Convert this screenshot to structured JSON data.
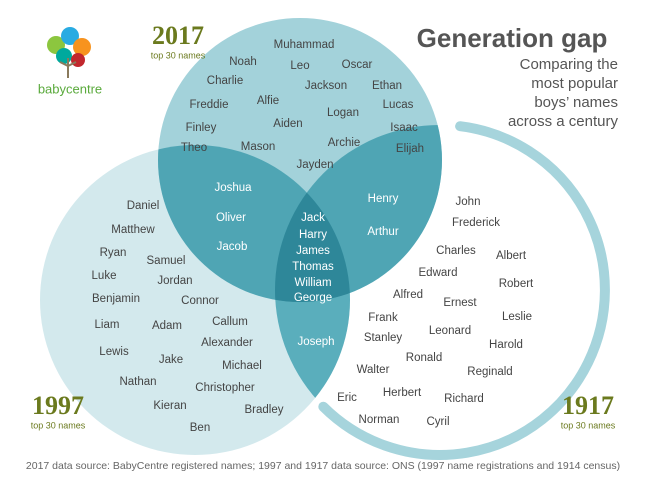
{
  "logo": {
    "brand": "babycentre"
  },
  "title": "Generation gap",
  "subtitle": [
    "Comparing the",
    "most popular",
    "boys’ names",
    "across a century"
  ],
  "sets": [
    {
      "year": "2017",
      "caption": "top 30 names"
    },
    {
      "year": "1997",
      "caption": "top 30 names"
    },
    {
      "year": "1917",
      "caption": "top 30 names"
    }
  ],
  "regions": {
    "only_2017": [
      "Muhammad",
      "Noah",
      "Leo",
      "Oscar",
      "Charlie",
      "Jackson",
      "Ethan",
      "Freddie",
      "Alfie",
      "Logan",
      "Lucas",
      "Finley",
      "Aiden",
      "Isaac",
      "Theo",
      "Mason",
      "Archie",
      "Elijah",
      "Jayden"
    ],
    "both_2017_1997": [
      "Joshua",
      "Oliver",
      "Jacob"
    ],
    "both_2017_1917": [
      "Henry",
      "Arthur"
    ],
    "all_three": [
      "Jack",
      "Harry",
      "James",
      "Thomas",
      "William",
      "George"
    ],
    "both_1997_1917": [
      "Joseph"
    ],
    "only_1997": [
      "Daniel",
      "Matthew",
      "Ryan",
      "Samuel",
      "Luke",
      "Jordan",
      "Benjamin",
      "Connor",
      "Liam",
      "Adam",
      "Callum",
      "Lewis",
      "Alexander",
      "Jake",
      "Michael",
      "Nathan",
      "Christopher",
      "Kieran",
      "Bradley",
      "Ben"
    ],
    "only_1917": [
      "John",
      "Frederick",
      "Charles",
      "Albert",
      "Edward",
      "Robert",
      "Alfred",
      "Ernest",
      "Leslie",
      "Frank",
      "Leonard",
      "Stanley",
      "Harold",
      "Ronald",
      "Walter",
      "Reginald",
      "Eric",
      "Herbert",
      "Richard",
      "Norman",
      "Cyril"
    ]
  },
  "footer": "2017 data source: BabyCentre registered names; 1997 and 1917 data source: ONS (1997 name registrations and 1914 census)"
}
